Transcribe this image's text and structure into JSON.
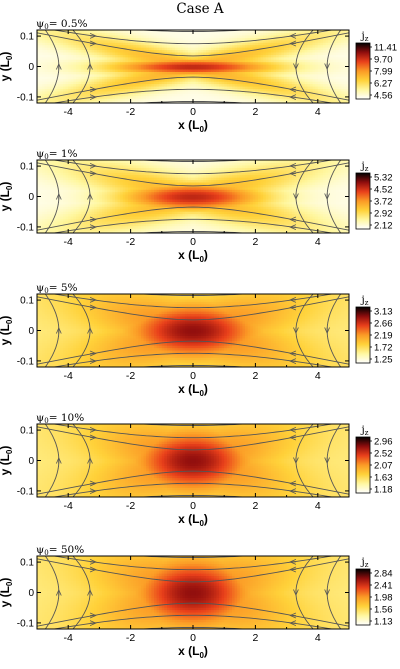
{
  "figure_title": "Case A",
  "x_label": "x (L",
  "x_label_sub": "0",
  "x_label_close": ")",
  "y_label": "y (L",
  "y_label_sub": "0",
  "y_label_close": ")",
  "colorbar_title": "j",
  "colorbar_title_sub": "z",
  "psi_symbol": "ψ",
  "psi_sub": "0",
  "colors": {
    "colormap": [
      "#ffffff",
      "#fff7a0",
      "#ffd23a",
      "#fb9a26",
      "#e9401b",
      "#8f0d0d",
      "#000000"
    ],
    "streamline": "#555555",
    "frame": "#000000"
  },
  "chart_data": [
    {
      "type": "heatmap",
      "panel_label": "= 0.5%",
      "xlim": [
        -5,
        5
      ],
      "ylim": [
        -0.12,
        0.12
      ],
      "x_ticks": [
        -4,
        -2,
        0,
        2,
        4
      ],
      "x_tick_labels": [
        "-4",
        "-2",
        "0",
        "2",
        "4"
      ],
      "y_ticks": [
        -0.1,
        0,
        0.1
      ],
      "y_tick_labels": [
        "-0.1",
        "0",
        "0.1"
      ],
      "colorbar_range": [
        4.56,
        11.41
      ],
      "colorbar_ticks": [
        "11.41",
        "9.70",
        "7.99",
        "6.27",
        "4.56"
      ],
      "current_sheet_half_width_x": 1.4,
      "current_sheet_half_width_y": 0.012,
      "streamlines": "x-point"
    },
    {
      "type": "heatmap",
      "panel_label": "= 1%",
      "xlim": [
        -5,
        5
      ],
      "ylim": [
        -0.12,
        0.12
      ],
      "x_ticks": [
        -4,
        -2,
        0,
        2,
        4
      ],
      "x_tick_labels": [
        "-4",
        "-2",
        "0",
        "2",
        "4"
      ],
      "y_ticks": [
        -0.1,
        0,
        0.1
      ],
      "y_tick_labels": [
        "-0.1",
        "0",
        "0.1"
      ],
      "colorbar_range": [
        2.12,
        5.32
      ],
      "colorbar_ticks": [
        "5.32",
        "4.52",
        "3.72",
        "2.92",
        "2.12"
      ],
      "current_sheet_half_width_x": 1.2,
      "current_sheet_half_width_y": 0.02,
      "streamlines": "x-point"
    },
    {
      "type": "heatmap",
      "panel_label": "= 5%",
      "xlim": [
        -5,
        5
      ],
      "ylim": [
        -0.12,
        0.12
      ],
      "x_ticks": [
        -4,
        -2,
        0,
        2,
        4
      ],
      "x_tick_labels": [
        "-4",
        "-2",
        "0",
        "2",
        "4"
      ],
      "y_ticks": [
        -0.1,
        0,
        0.1
      ],
      "y_tick_labels": [
        "-0.1",
        "0",
        "0.1"
      ],
      "colorbar_range": [
        1.25,
        3.13
      ],
      "colorbar_ticks": [
        "3.13",
        "2.66",
        "2.19",
        "1.72",
        "1.25"
      ],
      "current_sheet_half_width_x": 1.0,
      "current_sheet_half_width_y": 0.035,
      "streamlines": "x-point"
    },
    {
      "type": "heatmap",
      "panel_label": "= 10%",
      "xlim": [
        -5,
        5
      ],
      "ylim": [
        -0.12,
        0.12
      ],
      "x_ticks": [
        -4,
        -2,
        0,
        2,
        4
      ],
      "x_tick_labels": [
        "-4",
        "-2",
        "0",
        "2",
        "4"
      ],
      "y_ticks": [
        -0.1,
        0,
        0.1
      ],
      "y_tick_labels": [
        "-0.1",
        "0",
        "0.1"
      ],
      "colorbar_range": [
        1.18,
        2.96
      ],
      "colorbar_ticks": [
        "2.96",
        "2.52",
        "2.07",
        "1.63",
        "1.18"
      ],
      "current_sheet_half_width_x": 0.9,
      "current_sheet_half_width_y": 0.04,
      "streamlines": "x-point"
    },
    {
      "type": "heatmap",
      "panel_label": "= 50%",
      "xlim": [
        -5,
        5
      ],
      "ylim": [
        -0.12,
        0.12
      ],
      "x_ticks": [
        -4,
        -2,
        0,
        2,
        4
      ],
      "x_tick_labels": [
        "-4",
        "-2",
        "0",
        "2",
        "4"
      ],
      "y_ticks": [
        -0.1,
        0,
        0.1
      ],
      "y_tick_labels": [
        "-0.1",
        "0",
        "0.1"
      ],
      "colorbar_range": [
        1.13,
        2.84
      ],
      "colorbar_ticks": [
        "2.84",
        "2.41",
        "1.98",
        "1.56",
        "1.13"
      ],
      "current_sheet_half_width_x": 0.9,
      "current_sheet_half_width_y": 0.045,
      "streamlines": "x-point"
    }
  ]
}
